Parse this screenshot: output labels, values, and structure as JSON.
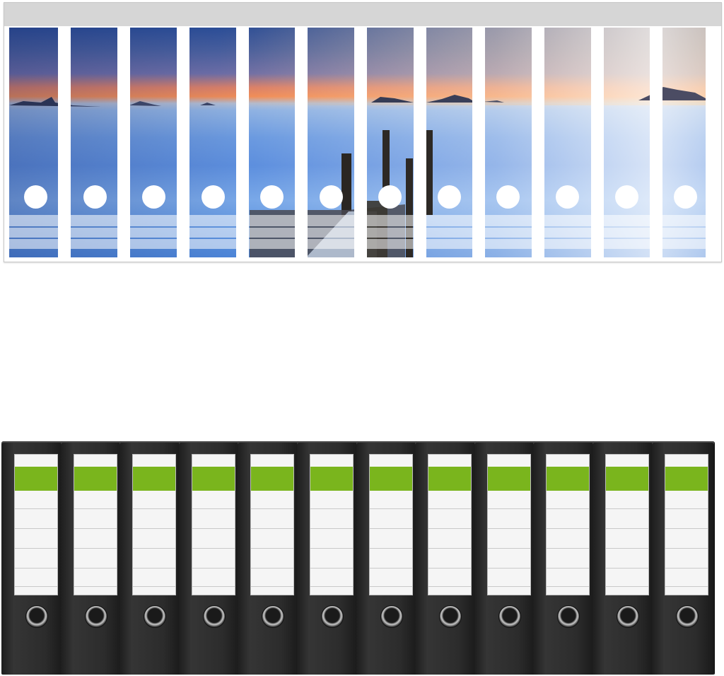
{
  "image": {
    "description_tags": [
      "binder-spine-label-sheet-seascape",
      "black-lever-arch-binders-with-green-labels"
    ],
    "sheet": {
      "strip_count": 12,
      "header_color": "#d6d6d6"
    },
    "binders": {
      "count": 12,
      "body_color": "#2a2a2a",
      "label_band_color": "#7ab51d",
      "label_color": "#f5f5f5"
    }
  }
}
